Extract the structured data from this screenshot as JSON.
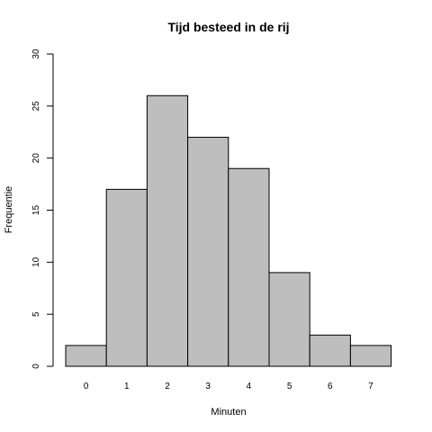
{
  "chart_data": {
    "type": "bar",
    "title": "Tijd besteed in de rij",
    "xlabel": "Minuten",
    "ylabel": "Frequentie",
    "categories": [
      "0",
      "1",
      "2",
      "3",
      "4",
      "5",
      "6",
      "7"
    ],
    "values": [
      2,
      17,
      26,
      22,
      19,
      9,
      3,
      2
    ],
    "ylim": [
      0,
      30
    ],
    "yticks": [
      "0",
      "5",
      "10",
      "15",
      "20",
      "25",
      "30"
    ],
    "grid": false,
    "legend": "none",
    "bar_color": "#BEBEBE",
    "edge_color": "#000000"
  }
}
